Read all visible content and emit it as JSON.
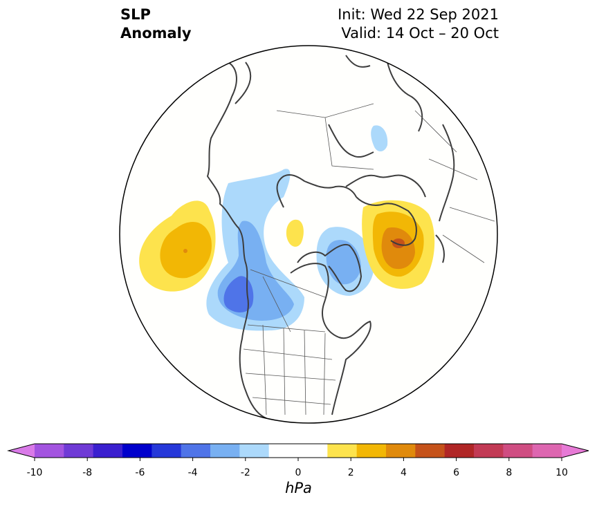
{
  "title": {
    "left_line1": "SLP",
    "left_line2": "Anomaly",
    "right_line1": "Init: Wed 22 Sep 2021",
    "right_line2": "Valid: 14 Oct – 20 Oct"
  },
  "colorbar": {
    "unit": "hPa",
    "min": -10,
    "max": 10,
    "ticks": [
      "-10",
      "-8",
      "-6",
      "-4",
      "-2",
      "0",
      "2",
      "4",
      "6",
      "8",
      "10"
    ],
    "colors": [
      "#d97ae8",
      "#a354e0",
      "#6f3ad6",
      "#3a1fcf",
      "#0000cc",
      "#2638d9",
      "#4f74e8",
      "#78b0f2",
      "#acd9fb",
      "#ffffff",
      "#ffffff",
      "#fde34d",
      "#f2b705",
      "#e08a0c",
      "#c5521a",
      "#b02626",
      "#c23a55",
      "#cf4d82",
      "#dd66b0",
      "#e77ad6"
    ]
  },
  "anomalies": [
    {
      "name": "north-pacific-high",
      "levels_hpa": [
        1,
        2,
        3
      ]
    },
    {
      "name": "gulf-of-alaska-low",
      "levels_hpa": [
        -1,
        -2,
        -3
      ]
    },
    {
      "name": "canada-low",
      "levels_hpa": [
        -1,
        -2
      ]
    },
    {
      "name": "arctic-high",
      "levels_hpa": [
        1
      ]
    },
    {
      "name": "greenland-low",
      "levels_hpa": [
        -1,
        -2
      ]
    },
    {
      "name": "europe-high",
      "levels_hpa": [
        1,
        2,
        3,
        4
      ]
    },
    {
      "name": "siberia-low",
      "levels_hpa": [
        -1
      ]
    }
  ]
}
